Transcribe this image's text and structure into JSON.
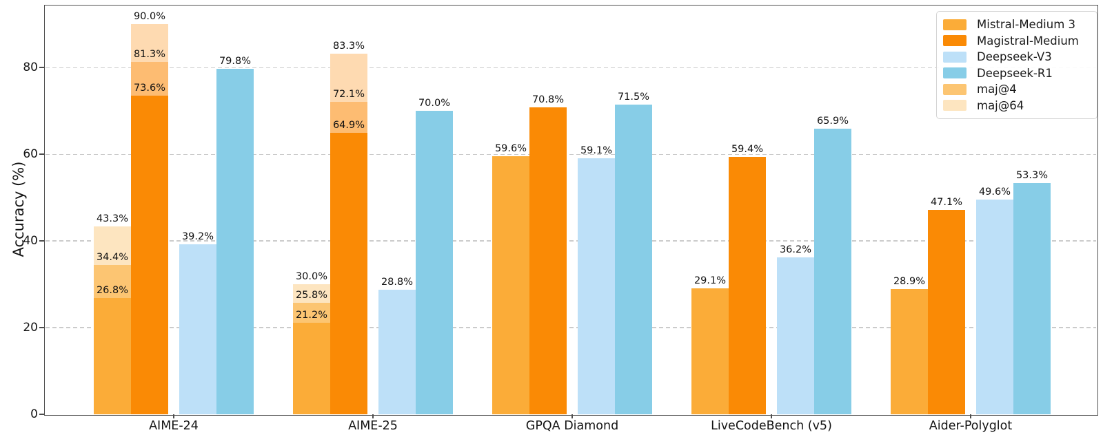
{
  "chart_data": {
    "type": "bar",
    "title": "",
    "ylabel": "Accuracy (%)",
    "xlabel": "",
    "ylim": [
      0,
      94.5
    ],
    "yticks": [
      0,
      20,
      40,
      60,
      80
    ],
    "grid": "horizontal dashed gridlines at 20/40/60/80",
    "legend_position": "upper right",
    "categories": [
      "AIME-24",
      "AIME-25",
      "GPQA Diamond",
      "LiveCodeBench (v5)",
      "Aider-Polyglot"
    ],
    "series": [
      {
        "name": "Mistral-Medium 3",
        "color": "#FBAC38",
        "maj4_color": "#FCC572",
        "maj64_color": "#FDE5C0",
        "values": [
          26.8,
          21.2,
          59.6,
          29.1,
          28.9
        ],
        "maj4": [
          34.4,
          25.8,
          null,
          null,
          null
        ],
        "maj64": [
          43.3,
          30.0,
          null,
          null,
          null
        ]
      },
      {
        "name": "Magistral-Medium",
        "color": "#FA8A05",
        "maj4_color": "#FDBC72",
        "maj64_color": "#FEDAB1",
        "values": [
          73.6,
          64.9,
          70.8,
          59.4,
          47.1
        ],
        "maj4": [
          81.3,
          72.1,
          null,
          null,
          null
        ],
        "maj64": [
          90.0,
          83.3,
          null,
          null,
          null
        ]
      },
      {
        "name": "Deepseek-V3",
        "color": "#BDE0F8",
        "values": [
          39.2,
          28.8,
          59.1,
          36.2,
          49.6
        ]
      },
      {
        "name": "Deepseek-R1",
        "color": "#87CDE7",
        "values": [
          79.8,
          70.0,
          71.5,
          65.9,
          53.3
        ]
      }
    ],
    "legend_items": [
      {
        "label": "Mistral-Medium 3",
        "color": "#FBAC38"
      },
      {
        "label": "Magistral-Medium",
        "color": "#FA8A05"
      },
      {
        "label": "Deepseek-V3",
        "color": "#BDE0F8"
      },
      {
        "label": "Deepseek-R1",
        "color": "#87CDE7"
      },
      {
        "label": "maj@4",
        "color": "#FCC572"
      },
      {
        "label": "maj@64",
        "color": "#FDE5C0"
      }
    ],
    "value_label_format": "{value}%"
  },
  "axis_style": {
    "grid_color": "#cbcbcb",
    "spine_color": "#4d4d4d",
    "text_color": "#141414"
  }
}
